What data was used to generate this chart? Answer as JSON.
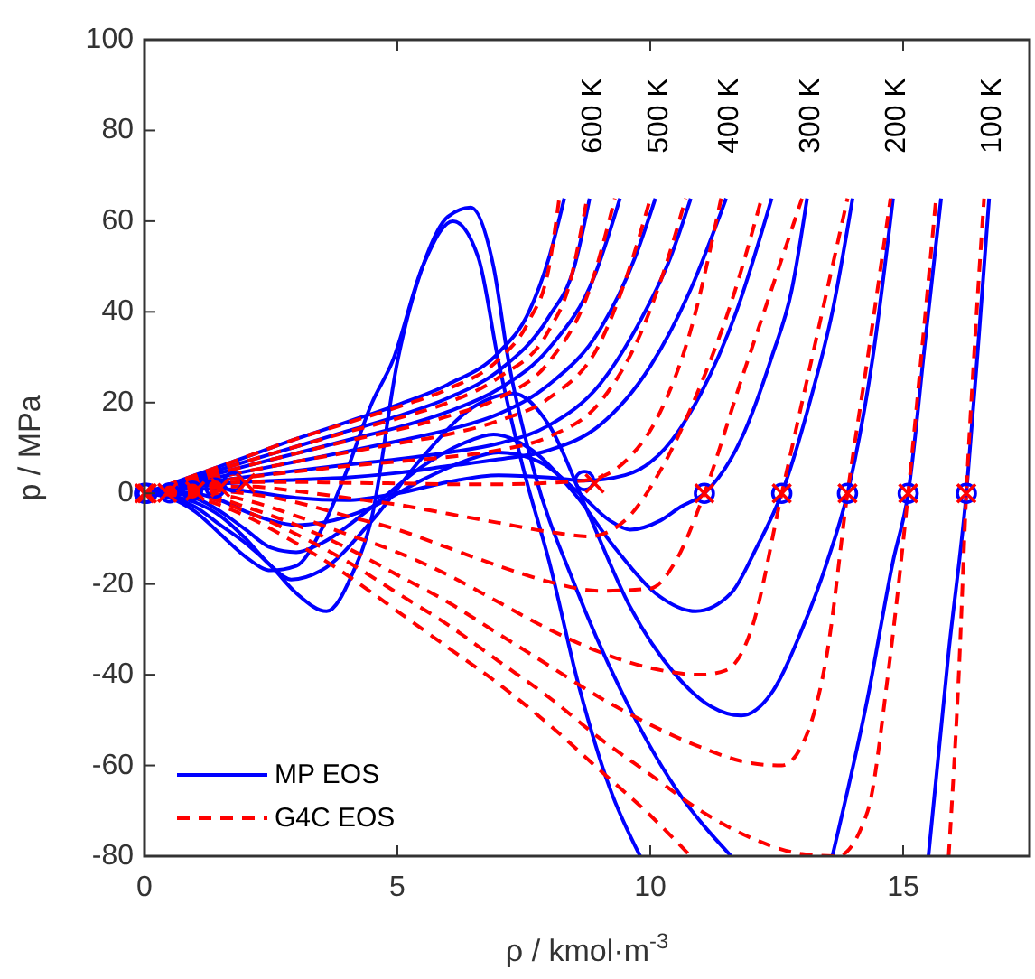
{
  "chart_data": {
    "type": "line",
    "xlabel": "ρ / kmol·m$^{-3}$",
    "ylabel": "p / MPa",
    "xlim": [
      0,
      17.5
    ],
    "ylim": [
      -80,
      100
    ],
    "xticks": [
      0,
      5,
      10,
      15
    ],
    "yticks": [
      -80,
      -60,
      -40,
      -20,
      0,
      20,
      40,
      60,
      80,
      100
    ],
    "grid": false,
    "legend": "bottom left",
    "annotations": [
      "600 K",
      "500 K",
      "400 K",
      "300 K",
      "200 K",
      "100 K"
    ],
    "series": [
      {
        "name": "MP EOS",
        "color": "#0000ff",
        "line_style": "solid",
        "x": [
          0,
          0.5,
          1,
          1.5,
          2,
          2.5,
          3,
          3.5,
          4,
          4.5,
          4.9,
          5.5,
          6.1,
          6.6,
          7,
          7.5,
          8,
          8.6,
          9.2,
          9.8,
          13,
          15.5,
          15.9,
          16.25,
          16.5,
          16.7
        ],
        "values": [
          0,
          -1,
          -4,
          -9,
          -14,
          -17,
          -16,
          -8,
          5,
          20,
          29,
          50,
          60,
          52,
          29,
          5,
          -15,
          -43,
          -65,
          -80,
          null,
          -80,
          -35,
          0,
          35,
          65
        ]
      },
      {
        "color": "#0000ff",
        "line_style": "solid",
        "x": [
          0,
          0.5,
          1,
          1.5,
          2,
          2.5,
          3,
          3.6,
          4.1,
          4.5,
          5,
          5.5,
          6,
          6.45,
          6.9,
          7.2,
          7.7,
          8.5,
          9.4,
          10.5,
          11.6,
          12.5,
          13.6,
          14.3,
          14.8,
          15.1,
          15.45,
          15.75
        ],
        "values": [
          0,
          -0.8,
          -3,
          -7,
          -11,
          -16,
          -22,
          -26,
          -18,
          -5,
          29,
          50,
          61,
          63,
          50,
          29,
          5,
          -20,
          -43,
          -65,
          -80,
          null,
          -80,
          -45,
          -15,
          0,
          35,
          65
        ]
      },
      {
        "color": "#0000ff",
        "line_style": "solid",
        "x": [
          0,
          0.5,
          1,
          1.5,
          2,
          2.5,
          2.9,
          3.5,
          4.5,
          5.5,
          6.5,
          7.3,
          8,
          8.8,
          9.6,
          10.5,
          11.2,
          11.8,
          12.4,
          13,
          13.5,
          13.9,
          14.4,
          14.8
        ],
        "values": [
          0,
          -0.5,
          -2,
          -5,
          -10,
          -16,
          -19,
          -17,
          -6,
          8,
          19,
          22,
          15,
          -5,
          -25,
          -40,
          -47,
          -49,
          -44,
          -30,
          -15,
          0,
          30,
          65
        ]
      },
      {
        "color": "#0000ff",
        "line_style": "solid",
        "x": [
          0,
          0.5,
          1,
          1.5,
          2,
          2.5,
          3,
          3.5,
          4.5,
          5.5,
          6.3,
          6.9,
          7.6,
          8.5,
          9.3,
          10.1,
          10.9,
          11.6,
          12.1,
          12.6,
          13.2,
          13.6,
          14
        ],
        "values": [
          0,
          0,
          -1,
          -4,
          -8,
          -12,
          -13,
          -11,
          -3,
          6,
          11,
          13,
          10,
          0,
          -12,
          -22,
          -26,
          -22,
          -12,
          0,
          22,
          40,
          65
        ]
      },
      {
        "color": "#0000ff",
        "line_style": "solid",
        "x": [
          0,
          0.5,
          1,
          1.5,
          2,
          2.5,
          3,
          3.5,
          4.5,
          5.5,
          6.3,
          7,
          7.8,
          8.6,
          9.2,
          9.6,
          10.2,
          10.6,
          11.07,
          11.8,
          12.4,
          12.8,
          13.1
        ],
        "values": [
          0,
          0.3,
          0,
          -1.5,
          -4,
          -6,
          -7,
          -6.5,
          -3,
          3,
          7,
          9,
          7,
          0,
          -6,
          -8,
          -6,
          -3,
          0,
          12,
          30,
          45,
          65
        ]
      },
      {
        "color": "#0000ff",
        "line_style": "solid",
        "x": [
          0,
          0.5,
          1,
          1.5,
          2,
          3,
          4,
          5,
          6,
          7,
          8,
          8.7,
          9.5,
          10.3,
          11,
          11.7,
          12.4
        ],
        "values": [
          0,
          0.6,
          1,
          1,
          0.5,
          -1,
          -1.5,
          0,
          2.5,
          4,
          3.5,
          2.8,
          4,
          10,
          22,
          40,
          65
        ]
      },
      {
        "color": "#0000ff",
        "line_style": "solid",
        "x": [
          0,
          1,
          2,
          3,
          4,
          5,
          6,
          7,
          8,
          9,
          10,
          10.8,
          11.5
        ],
        "values": [
          0,
          1.5,
          2.5,
          3,
          3.5,
          4.5,
          6,
          7.5,
          9.5,
          15,
          28,
          45,
          65
        ]
      },
      {
        "color": "#0000ff",
        "line_style": "solid",
        "x": [
          0,
          1,
          2,
          3,
          4,
          5,
          6,
          7,
          8,
          9,
          9.8,
          10.4,
          10.8
        ],
        "values": [
          0,
          2,
          3.6,
          5,
          6.3,
          7.5,
          9,
          11,
          15,
          24,
          38,
          52,
          65
        ]
      },
      {
        "color": "#0000ff",
        "line_style": "solid",
        "x": [
          0,
          1,
          2,
          3,
          4,
          5,
          6,
          7,
          8,
          9,
          9.7,
          10.1
        ],
        "values": [
          0,
          2.5,
          4.8,
          7,
          9.2,
          11.5,
          14,
          17.5,
          24,
          36,
          52,
          65
        ]
      },
      {
        "color": "#0000ff",
        "line_style": "solid",
        "x": [
          0,
          1,
          2,
          3,
          4,
          5,
          6,
          7,
          8,
          8.9,
          9.4
        ],
        "values": [
          0,
          3,
          6,
          8.8,
          11.7,
          14.5,
          18,
          23,
          32,
          48,
          65
        ]
      },
      {
        "color": "#0000ff",
        "line_style": "solid",
        "x": [
          0,
          1,
          2,
          3,
          4,
          5,
          6,
          7,
          8,
          8.5,
          8.8
        ],
        "values": [
          0,
          3.5,
          7,
          10.3,
          13.7,
          17,
          21,
          27,
          39,
          50,
          65
        ]
      },
      {
        "color": "#0000ff",
        "line_style": "solid",
        "x": [
          0,
          1,
          2,
          3,
          4,
          5,
          6,
          7,
          7.6,
          8,
          8.3
        ],
        "values": [
          0,
          4,
          8,
          12,
          15.7,
          19.5,
          24,
          31,
          40,
          52,
          65
        ]
      },
      {
        "name": "G4C EOS",
        "color": "#ff0000",
        "line_style": "dashed",
        "x": [
          0,
          1,
          2,
          3,
          4,
          5,
          6,
          7,
          8,
          9,
          10,
          10.8,
          13,
          15.9,
          16.1,
          16.25,
          16.4,
          16.6
        ],
        "values": [
          0,
          -1,
          -5,
          -11,
          -18,
          -26,
          -34,
          -42,
          -51,
          -61,
          -71,
          -80,
          null,
          -80,
          -40,
          0,
          30,
          65
        ]
      },
      {
        "color": "#ff0000",
        "line_style": "dashed",
        "x": [
          0,
          1,
          2,
          3,
          4,
          5,
          6,
          7,
          8,
          9,
          10,
          11,
          12,
          13,
          13.7,
          14.3,
          14.7,
          15.1,
          15.4,
          15.65
        ],
        "values": [
          0,
          -0.5,
          -4,
          -9,
          -15,
          -22,
          -29,
          -37,
          -45,
          -54,
          -62,
          -70,
          -76,
          -79.5,
          -80,
          -70,
          -40,
          0,
          35,
          65
        ]
      },
      {
        "color": "#ff0000",
        "line_style": "dashed",
        "x": [
          0,
          1,
          2,
          3,
          4,
          5,
          6,
          7,
          8,
          9,
          10,
          11,
          12,
          12.6,
          13.1,
          13.5,
          13.9,
          14.3,
          14.75
        ],
        "values": [
          0,
          0,
          -3,
          -7,
          -12,
          -18,
          -24,
          -31,
          -38,
          -45,
          -51,
          -56,
          -59.5,
          -60,
          -53,
          -35,
          0,
          30,
          65
        ]
      },
      {
        "color": "#ff0000",
        "line_style": "dashed",
        "x": [
          0,
          1,
          2,
          3,
          4,
          5,
          6,
          7,
          8,
          9,
          10,
          11,
          11.5,
          12,
          12.6,
          13.2,
          13.9
        ],
        "values": [
          0,
          0.3,
          -1.5,
          -5,
          -9,
          -13,
          -18,
          -24,
          -30,
          -35,
          -38.5,
          -40,
          -39,
          -30,
          0,
          30,
          65
        ]
      },
      {
        "color": "#ff0000",
        "line_style": "dashed",
        "x": [
          0,
          1,
          2,
          3,
          4,
          5,
          6,
          7,
          8,
          9,
          10,
          10.5,
          11.07,
          11.8,
          12.4,
          13
        ],
        "values": [
          0,
          0.7,
          0,
          -2,
          -5,
          -8,
          -12,
          -16,
          -19.5,
          -21.5,
          -21,
          -15,
          0,
          25,
          45,
          65
        ]
      },
      {
        "color": "#ff0000",
        "line_style": "dashed",
        "x": [
          0,
          1,
          2,
          3,
          4,
          5,
          6,
          7,
          8,
          8.8,
          9.5,
          10.2,
          11,
          11.6,
          12.2
        ],
        "values": [
          0,
          1.2,
          1.5,
          0.5,
          -1,
          -2.5,
          -4.5,
          -6.5,
          -8.5,
          -9.5,
          -6,
          5,
          24,
          42,
          65
        ]
      },
      {
        "color": "#ff0000",
        "line_style": "dashed",
        "x": [
          0,
          1,
          2,
          3,
          4,
          5,
          6,
          7,
          8,
          8.8,
          9.5,
          10.2,
          10.8,
          11.4
        ],
        "values": [
          0,
          1.5,
          2.5,
          2.5,
          2.3,
          2.2,
          2,
          2,
          2.3,
          3,
          7,
          18,
          36,
          65
        ]
      },
      {
        "color": "#ff0000",
        "line_style": "dashed",
        "x": [
          0,
          1,
          2,
          3,
          4,
          5,
          6,
          7,
          8,
          9,
          9.8,
          10.3,
          10.7
        ],
        "values": [
          0,
          2,
          3.5,
          4.8,
          6,
          7,
          8,
          9.5,
          12.5,
          20,
          35,
          50,
          65
        ]
      },
      {
        "color": "#ff0000",
        "line_style": "dashed",
        "x": [
          0,
          1,
          2,
          3,
          4,
          5,
          6,
          7,
          8,
          9,
          9.6,
          10
        ],
        "values": [
          0,
          2.5,
          4.8,
          7,
          9,
          11,
          13,
          16,
          21,
          33,
          50,
          65
        ]
      },
      {
        "color": "#ff0000",
        "line_style": "dashed",
        "x": [
          0,
          1,
          2,
          3,
          4,
          5,
          6,
          7,
          8,
          8.8,
          9.3
        ],
        "values": [
          0,
          3,
          6,
          8.8,
          11.5,
          14,
          17,
          21,
          29,
          45,
          65
        ]
      },
      {
        "color": "#ff0000",
        "line_style": "dashed",
        "x": [
          0,
          1,
          2,
          3,
          4,
          5,
          6,
          7,
          8,
          8.4,
          8.75
        ],
        "values": [
          0,
          3.5,
          7,
          10.3,
          13.5,
          16.5,
          20,
          25.5,
          36,
          46,
          65
        ]
      },
      {
        "color": "#ff0000",
        "line_style": "dashed",
        "x": [
          0,
          1,
          2,
          3,
          4,
          5,
          6,
          7,
          7.6,
          8,
          8.2
        ],
        "values": [
          0,
          4,
          8,
          12,
          15.5,
          19,
          23,
          29.5,
          38,
          50,
          65
        ]
      },
      {
        "type": "scatter",
        "marker": "circle",
        "color": "#0000ff",
        "x": [
          0,
          0.05,
          0.5,
          0.95,
          1.4,
          1.75,
          8.7,
          11.07,
          12.6,
          13.9,
          15.1,
          16.25
        ],
        "values": [
          0,
          0,
          0.1,
          0.5,
          1.2,
          2.5,
          2.8,
          0,
          0,
          0,
          0,
          0
        ]
      },
      {
        "type": "scatter",
        "marker": "cross",
        "color": "#ff0000",
        "x": [
          0,
          0.05,
          0.45,
          1,
          1.5,
          2,
          8.9,
          11.07,
          12.6,
          13.9,
          15.1,
          16.25
        ],
        "values": [
          0,
          0,
          0.1,
          0.5,
          1.3,
          2.3,
          2.2,
          0,
          0,
          0,
          0,
          0
        ]
      }
    ]
  }
}
